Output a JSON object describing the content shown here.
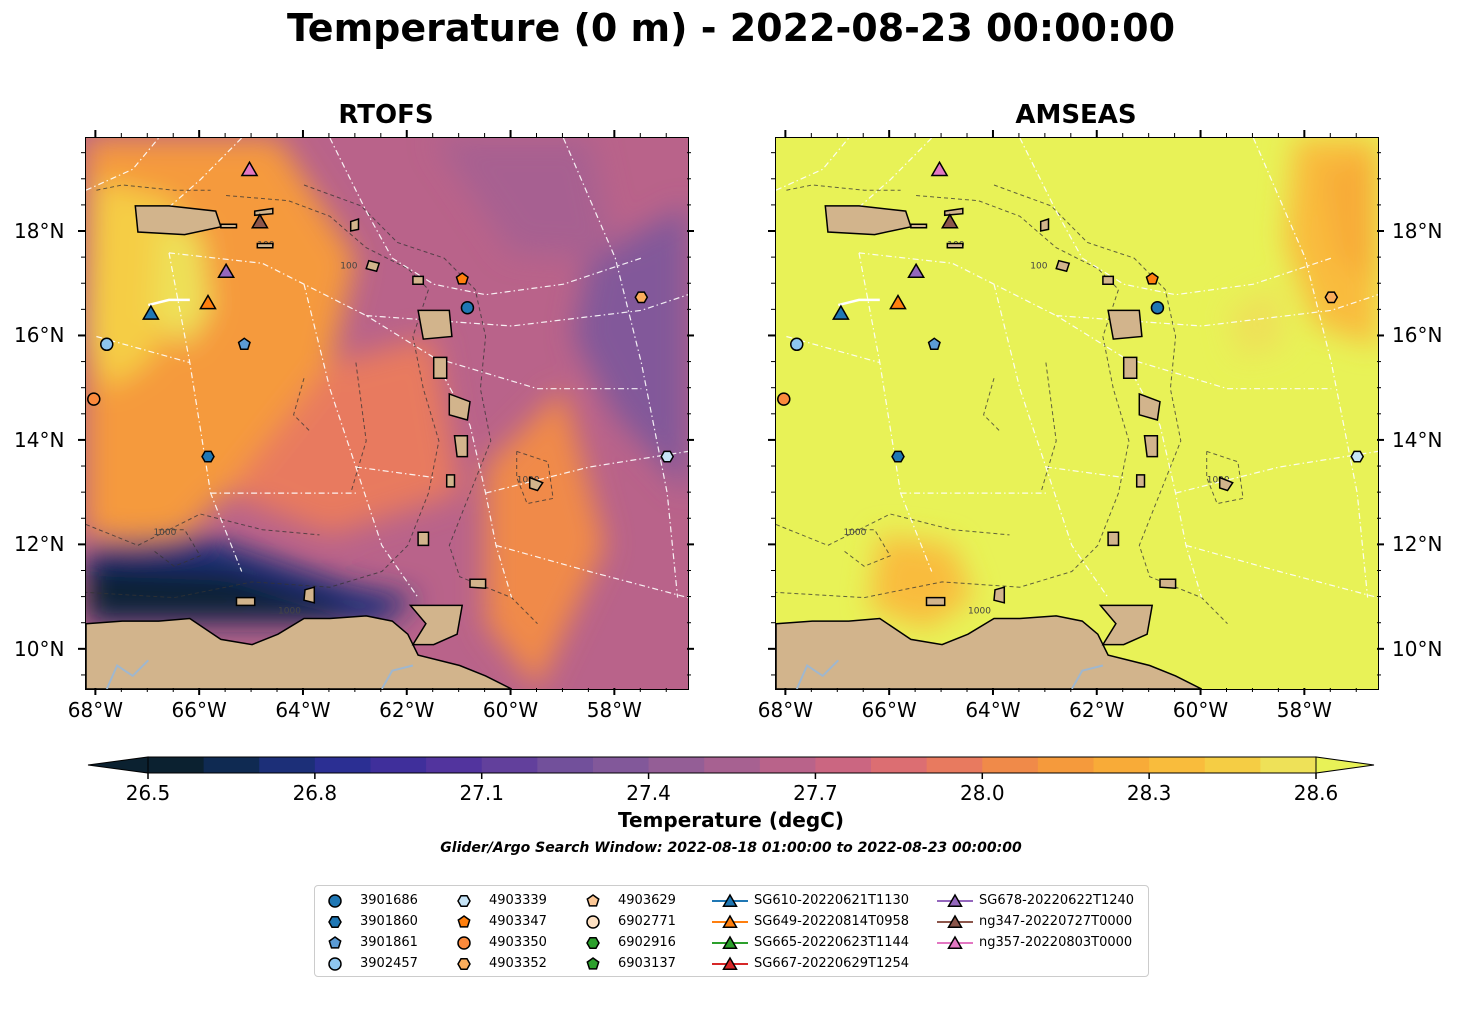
{
  "title": "Temperature (0 m) - 2022-08-23 00:00:00",
  "panels": [
    {
      "title": "RTOFS",
      "field": "rtofs"
    },
    {
      "title": "AMSEAS",
      "field": "amseas"
    }
  ],
  "x_ticks": [
    "68°W",
    "66°W",
    "64°W",
    "62°W",
    "60°W",
    "58°W"
  ],
  "y_ticks": [
    "18°N",
    "16°N",
    "14°N",
    "12°N",
    "10°N"
  ],
  "contour_labels": [
    "100",
    "1000"
  ],
  "colorbar": {
    "ticks": [
      "26.5",
      "26.8",
      "27.1",
      "27.4",
      "27.7",
      "28.0",
      "28.3",
      "28.6"
    ],
    "label": "Temperature (degC)",
    "colors": [
      "#0b2130",
      "#0f2a52",
      "#1c2f78",
      "#2b2f93",
      "#3f2f9b",
      "#52349e",
      "#62409c",
      "#72509b",
      "#82589a",
      "#945e96",
      "#a76191",
      "#b9638a",
      "#cb6681",
      "#dc6e72",
      "#e87a5f",
      "#f08a49",
      "#f59a3c",
      "#f8ab38",
      "#f9bc3c",
      "#f5cd44",
      "#eee158",
      "#e8f257"
    ]
  },
  "search_window": "Glider/Argo Search Window: 2022-08-18 01:00:00 to 2022-08-23 00:00:00",
  "legend": {
    "columns": [
      [
        {
          "label": "3901686",
          "marker": "circle",
          "color": "#1f77b4"
        },
        {
          "label": "3901860",
          "marker": "hexagon",
          "color": "#1f77b4"
        },
        {
          "label": "3901861",
          "marker": "pentagon",
          "color": "#5b9bd5"
        },
        {
          "label": "3902457",
          "marker": "circle",
          "color": "#8ec6f0"
        }
      ],
      [
        {
          "label": "4903339",
          "marker": "hexagon",
          "color": "#c6e4f7"
        },
        {
          "label": "4903347",
          "marker": "pentagon",
          "color": "#ff7f0e"
        },
        {
          "label": "4903350",
          "marker": "circle",
          "color": "#fb8a3c"
        },
        {
          "label": "4903352",
          "marker": "hexagon",
          "color": "#fbad5c"
        }
      ],
      [
        {
          "label": "4903629",
          "marker": "pentagon",
          "color": "#fdc896"
        },
        {
          "label": "6902771",
          "marker": "circle",
          "color": "#fde0c2"
        },
        {
          "label": "6902916",
          "marker": "hexagon",
          "color": "#2ca02c"
        },
        {
          "label": "6903137",
          "marker": "pentagon",
          "color": "#2ca02c"
        }
      ],
      [
        {
          "label": "SG610-20220621T1130",
          "marker": "triangle-line",
          "color": "#1f77b4"
        },
        {
          "label": "SG649-20220814T0958",
          "marker": "triangle-line",
          "color": "#ff7f0e"
        },
        {
          "label": "SG665-20220623T1144",
          "marker": "triangle-line",
          "color": "#2ca02c"
        },
        {
          "label": "SG667-20220629T1254",
          "marker": "triangle-line",
          "color": "#d62728"
        }
      ],
      [
        {
          "label": "SG678-20220622T1240",
          "marker": "triangle-line",
          "color": "#9467bd"
        },
        {
          "label": "ng347-20220727T0000",
          "marker": "triangle-line",
          "color": "#8c564b"
        },
        {
          "label": "ng357-20220803T0000",
          "marker": "triangle-line",
          "color": "#e377c2"
        }
      ]
    ]
  },
  "platforms": [
    {
      "id": "3901686",
      "marker": "circle",
      "color": "#1f77b4",
      "lon": -60.85,
      "lat": 16.55
    },
    {
      "id": "3901860",
      "marker": "hexagon",
      "color": "#1f77b4",
      "lon": -65.85,
      "lat": 13.7
    },
    {
      "id": "3901861",
      "marker": "pentagon",
      "color": "#5b9bd5",
      "lon": -65.15,
      "lat": 15.85
    },
    {
      "id": "3902457",
      "marker": "circle",
      "color": "#8ec6f0",
      "lon": -67.8,
      "lat": 15.85
    },
    {
      "id": "4903339",
      "marker": "hexagon",
      "color": "#c6e4f7",
      "lon": -57.0,
      "lat": 13.7
    },
    {
      "id": "4903347",
      "marker": "pentagon",
      "color": "#ff7f0e",
      "lon": -60.95,
      "lat": 17.1
    },
    {
      "id": "4903350",
      "marker": "circle",
      "color": "#fb8a3c",
      "lon": -68.05,
      "lat": 14.8
    },
    {
      "id": "4903352",
      "marker": "hexagon",
      "color": "#fbad5c",
      "lon": -57.5,
      "lat": 16.75
    },
    {
      "id": "SG610-20220621T1130",
      "marker": "triangle",
      "color": "#1f77b4",
      "lon": -66.95,
      "lat": 16.45
    },
    {
      "id": "SG649-20220814T0958",
      "marker": "triangle",
      "color": "#ff7f0e",
      "lon": -65.85,
      "lat": 16.65
    },
    {
      "id": "SG678-20220622T1240",
      "marker": "triangle",
      "color": "#9467bd",
      "lon": -65.5,
      "lat": 17.25
    },
    {
      "id": "ng347-20220727T0000",
      "marker": "triangle",
      "color": "#8c564b",
      "lon": -64.85,
      "lat": 18.2
    },
    {
      "id": "ng357-20220803T0000",
      "marker": "triangle",
      "color": "#e377c2",
      "lon": -65.05,
      "lat": 19.2
    }
  ],
  "extent": {
    "lon": [
      -68.2,
      -56.6
    ],
    "lat": [
      9.25,
      19.8
    ]
  }
}
